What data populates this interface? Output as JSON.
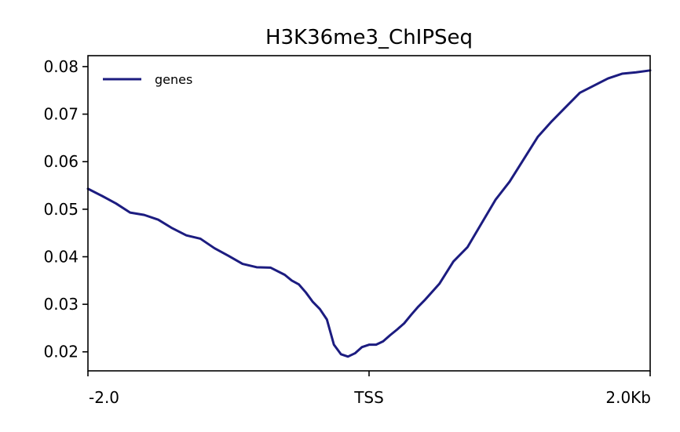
{
  "chart_data": {
    "type": "line",
    "title": "H3K36me3_ChIPSeq",
    "xlabel": "",
    "ylabel": "",
    "x_ticks": [
      {
        "pos": -2.0,
        "label": "-2.0"
      },
      {
        "pos": 0.0,
        "label": "TSS"
      },
      {
        "pos": 2.0,
        "label": "2.0Kb"
      }
    ],
    "y_ticks": [
      0.02,
      0.03,
      0.04,
      0.05,
      0.06,
      0.07,
      0.08
    ],
    "y_tick_labels": [
      "0.02",
      "0.03",
      "0.04",
      "0.05",
      "0.06",
      "0.07",
      "0.08"
    ],
    "xlim": [
      -2.0,
      2.0
    ],
    "ylim": [
      0.016,
      0.0823
    ],
    "grid": false,
    "legend": {
      "position": "top-left",
      "entries": [
        "genes"
      ]
    },
    "series": [
      {
        "name": "genes",
        "color": "#1c1c80",
        "x": [
          -2.0,
          -1.9,
          -1.8,
          -1.7,
          -1.6,
          -1.5,
          -1.4,
          -1.3,
          -1.2,
          -1.1,
          -1.0,
          -0.9,
          -0.8,
          -0.7,
          -0.6,
          -0.55,
          -0.5,
          -0.45,
          -0.4,
          -0.35,
          -0.3,
          -0.25,
          -0.2,
          -0.15,
          -0.1,
          -0.05,
          0.0,
          0.05,
          0.1,
          0.15,
          0.2,
          0.25,
          0.3,
          0.35,
          0.4,
          0.5,
          0.6,
          0.7,
          0.8,
          0.9,
          1.0,
          1.1,
          1.2,
          1.3,
          1.4,
          1.5,
          1.6,
          1.7,
          1.8,
          1.9,
          2.0
        ],
        "values": [
          0.0543,
          0.0528,
          0.0512,
          0.0493,
          0.0488,
          0.0478,
          0.046,
          0.0445,
          0.0438,
          0.0418,
          0.0402,
          0.0385,
          0.0378,
          0.0377,
          0.0362,
          0.035,
          0.0342,
          0.0325,
          0.0305,
          0.029,
          0.0268,
          0.0215,
          0.0195,
          0.019,
          0.0197,
          0.021,
          0.0215,
          0.0215,
          0.0222,
          0.0235,
          0.0247,
          0.026,
          0.0278,
          0.0295,
          0.031,
          0.0343,
          0.039,
          0.042,
          0.047,
          0.052,
          0.0558,
          0.0605,
          0.0652,
          0.0685,
          0.0715,
          0.0745,
          0.076,
          0.0775,
          0.0785,
          0.0788,
          0.0792
        ]
      }
    ]
  }
}
